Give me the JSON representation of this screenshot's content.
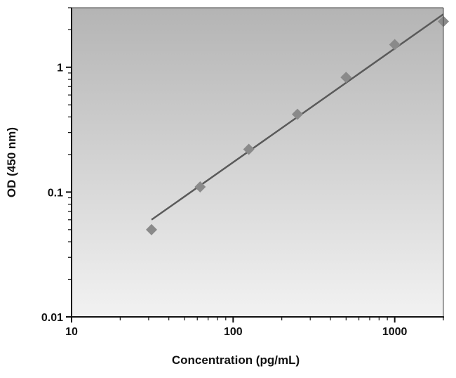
{
  "chart_data": {
    "type": "scatter",
    "title": "",
    "xlabel": "Concentration (pg/mL)",
    "ylabel": "OD (450 nm)",
    "x_scale": "log",
    "y_scale": "log",
    "xlim": [
      10,
      2000
    ],
    "ylim": [
      0.01,
      3
    ],
    "x_ticks": [
      {
        "value": 10,
        "label": "10"
      },
      {
        "value": 100,
        "label": "100"
      },
      {
        "value": 1000,
        "label": "1000"
      }
    ],
    "y_ticks": [
      {
        "value": 0.01,
        "label": "0.01"
      },
      {
        "value": 0.1,
        "label": "0.1"
      },
      {
        "value": 1,
        "label": "1"
      }
    ],
    "grid": false,
    "background": "gray gradient, darker at top",
    "marker": "diamond",
    "marker_color": "#8a8a8a",
    "line_color": "#5a5a5a",
    "series": [
      {
        "x": [
          31.25,
          62.5,
          125,
          250,
          500,
          1000,
          2000
        ],
        "y": [
          0.05,
          0.11,
          0.22,
          0.42,
          0.83,
          1.52,
          2.33
        ]
      }
    ],
    "fit_line": {
      "x": [
        31.25,
        2000
      ],
      "y": [
        0.06,
        2.66
      ]
    }
  }
}
